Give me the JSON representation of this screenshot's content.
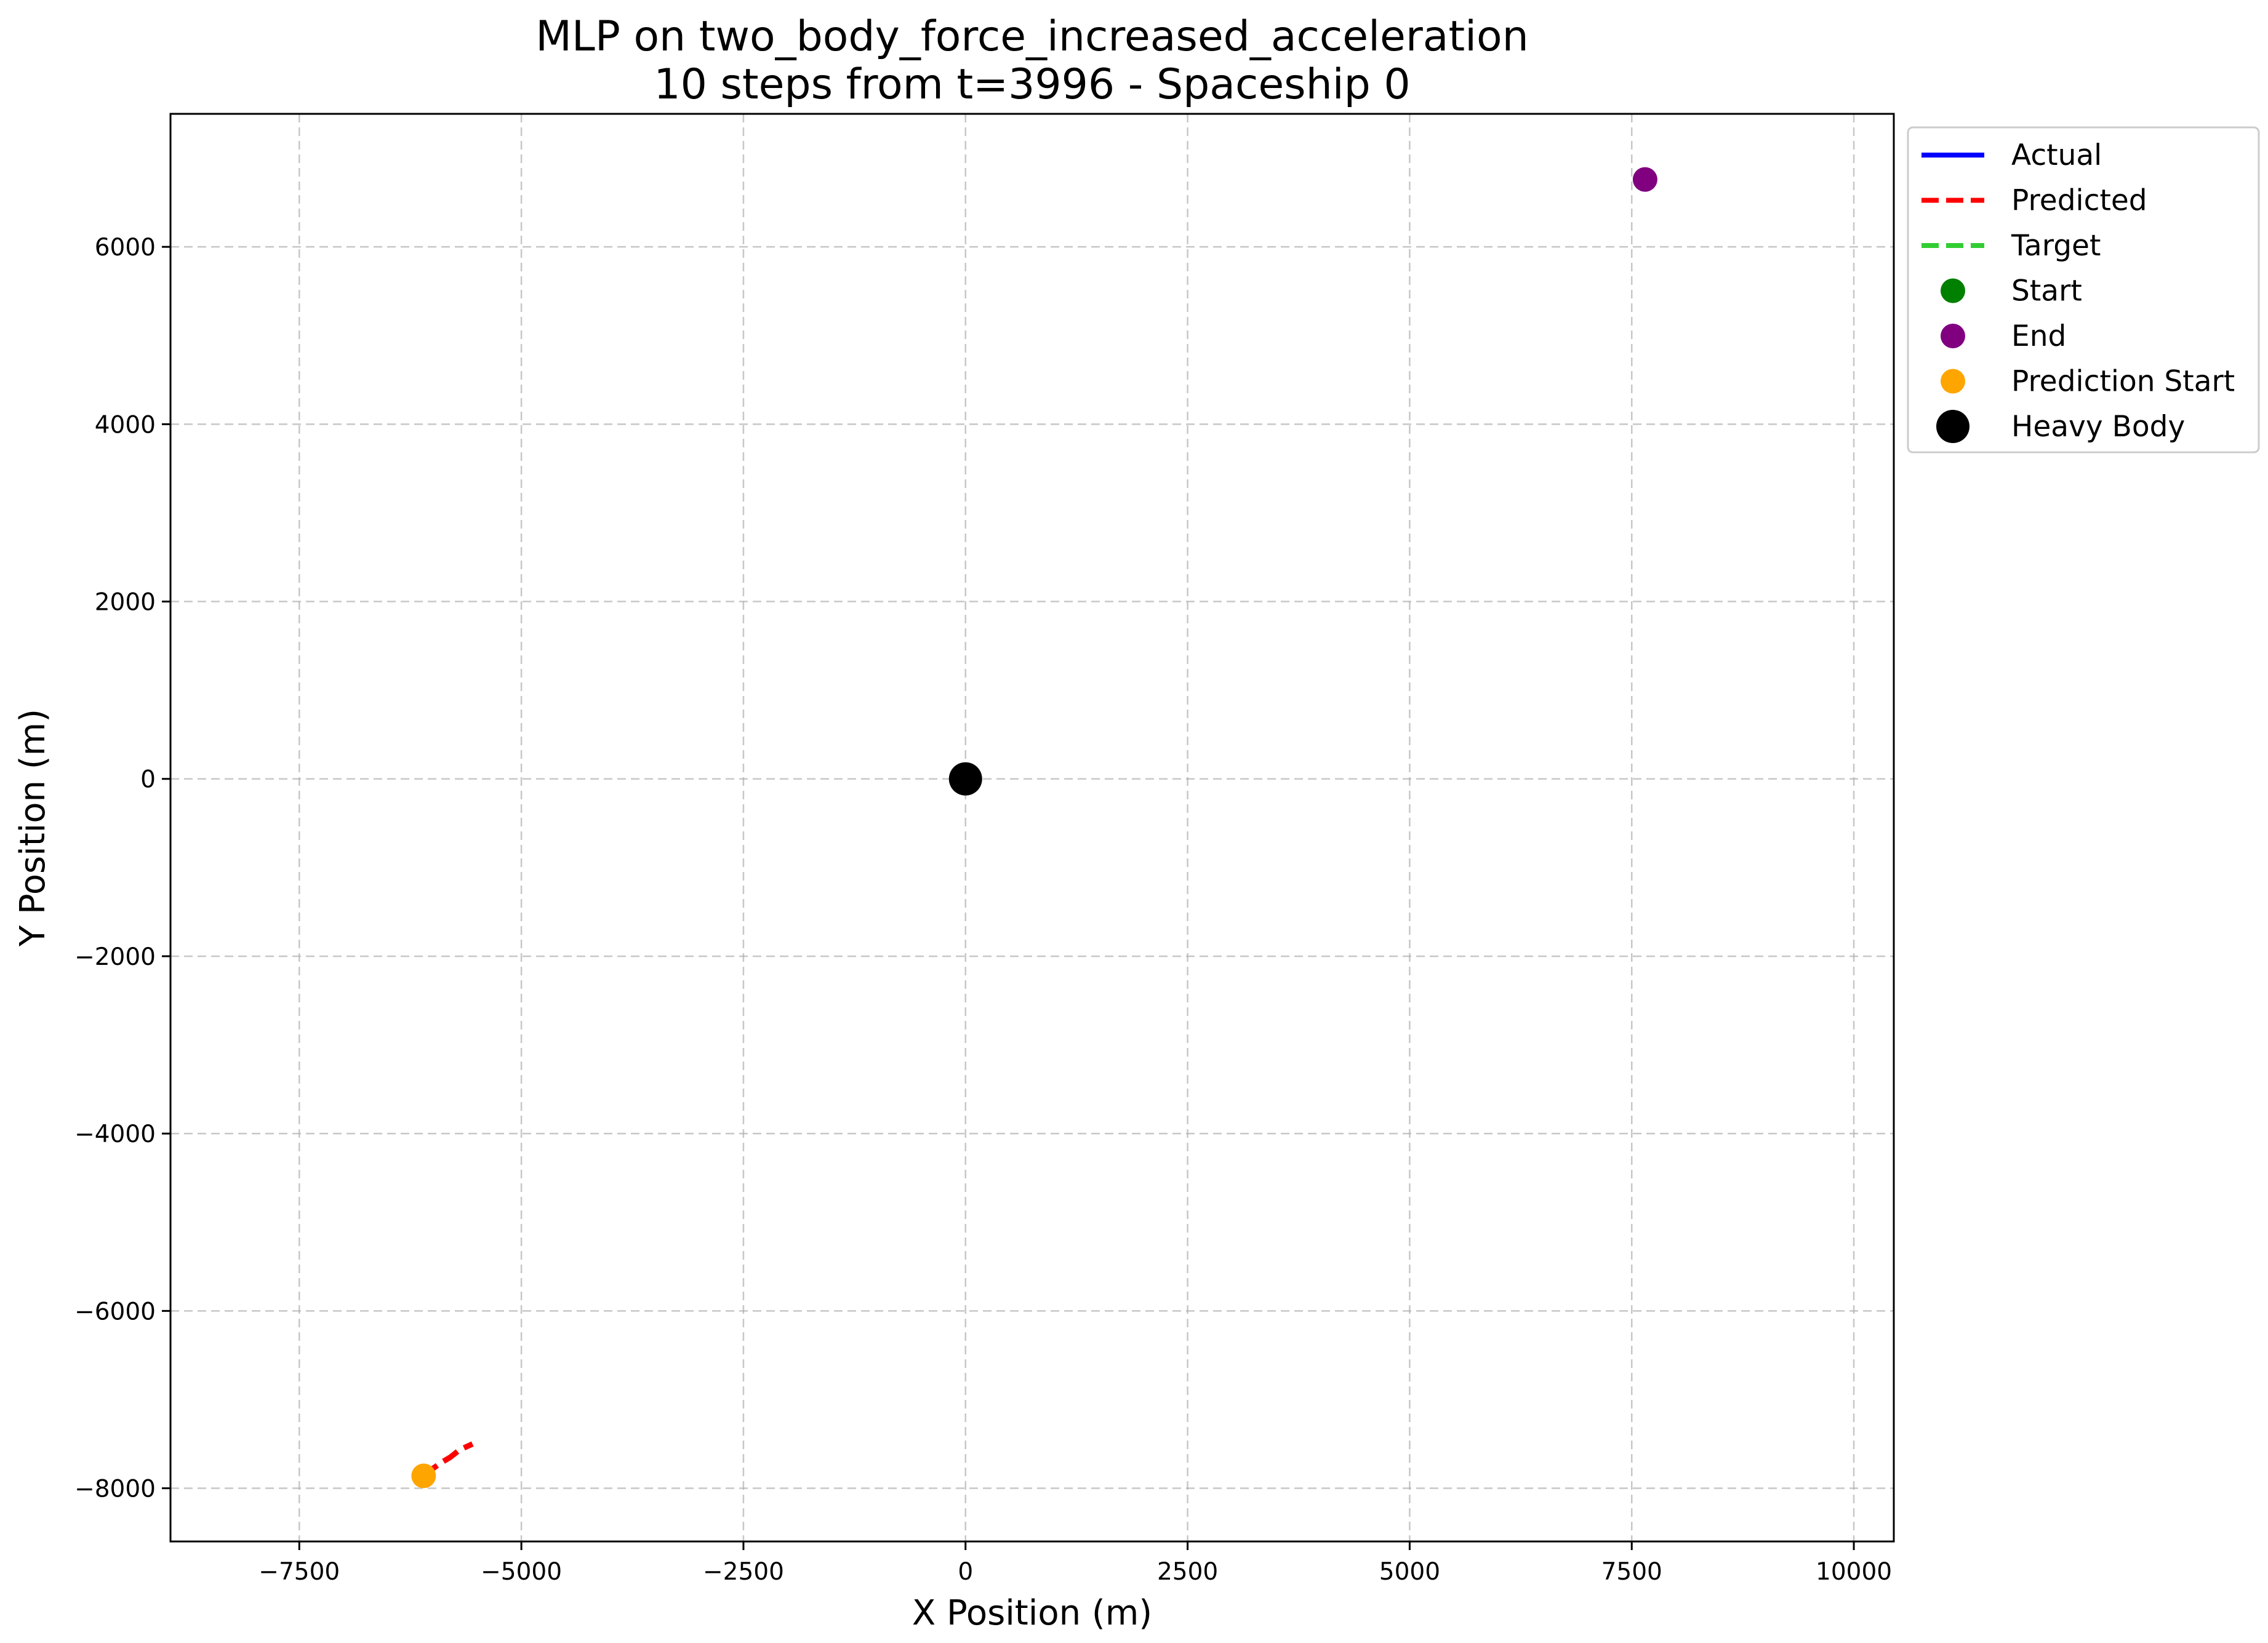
{
  "chart_data": {
    "type": "line",
    "title": "MLP on two_body_force_increased_acceleration",
    "subtitle": "10 steps from t=3996 - Spaceship 0",
    "xlabel": "X Position (m)",
    "ylabel": "Y Position (m)",
    "xlim": [
      -8950,
      10450
    ],
    "ylim": [
      -8600,
      7500
    ],
    "xticks": [
      -7500,
      -5000,
      -2500,
      0,
      2500,
      5000,
      7500,
      10000
    ],
    "yticks": [
      -8000,
      -6000,
      -4000,
      -2000,
      0,
      2000,
      4000,
      6000
    ],
    "grid": true,
    "legend_position": "outside-top-right",
    "legend": [
      {
        "label": "Actual",
        "kind": "line",
        "color": "#0000ff",
        "dash": "solid"
      },
      {
        "label": "Predicted",
        "kind": "line",
        "color": "#ff0000",
        "dash": "dashed"
      },
      {
        "label": "Target",
        "kind": "line",
        "color": "#32cd32",
        "dash": "dashed"
      },
      {
        "label": "Start",
        "kind": "marker",
        "color": "#008000",
        "size": "normal"
      },
      {
        "label": "End",
        "kind": "marker",
        "color": "#800080",
        "size": "normal"
      },
      {
        "label": "Prediction Start",
        "kind": "marker",
        "color": "#ffa500",
        "size": "normal"
      },
      {
        "label": "Heavy Body",
        "kind": "marker",
        "color": "#000000",
        "size": "large"
      }
    ],
    "series": [
      {
        "name": "Predicted",
        "kind": "line",
        "color": "#ff0000",
        "dash": "dashed",
        "points": [
          [
            -6100,
            -7860
          ],
          [
            -6000,
            -7780
          ],
          [
            -5900,
            -7710
          ],
          [
            -5800,
            -7650
          ],
          [
            -5700,
            -7570
          ],
          [
            -5550,
            -7500
          ]
        ]
      }
    ],
    "markers": [
      {
        "name": "End",
        "color": "#800080",
        "x": 7650,
        "y": 6760,
        "size": "normal"
      },
      {
        "name": "Prediction Start",
        "color": "#ffa500",
        "x": -6100,
        "y": -7860,
        "size": "normal"
      },
      {
        "name": "Heavy Body",
        "color": "#000000",
        "x": 0,
        "y": 0,
        "size": "large"
      }
    ]
  }
}
